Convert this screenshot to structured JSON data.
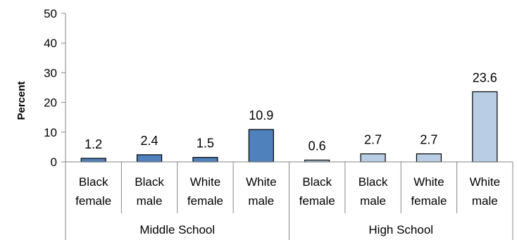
{
  "chart_data": {
    "type": "bar",
    "title": "",
    "xlabel": "",
    "ylabel": "Percent",
    "ylim": [
      0,
      50
    ],
    "yticks": [
      0,
      10,
      20,
      30,
      40,
      50
    ],
    "grid": false,
    "legend": "none",
    "groups": [
      {
        "name": "Middle School",
        "color": "#4f81bd",
        "categories": [
          [
            "Black",
            "female"
          ],
          [
            "Black",
            "male"
          ],
          [
            "White",
            "female"
          ],
          [
            "White",
            "male"
          ]
        ],
        "values": [
          1.2,
          2.4,
          1.5,
          10.9
        ]
      },
      {
        "name": "High School",
        "color": "#b9cde5",
        "categories": [
          [
            "Black",
            "female"
          ],
          [
            "Black",
            "male"
          ],
          [
            "White",
            "female"
          ],
          [
            "White",
            "male"
          ]
        ],
        "values": [
          0.6,
          2.7,
          2.7,
          23.6
        ]
      }
    ],
    "bar_outline": "#000000"
  }
}
